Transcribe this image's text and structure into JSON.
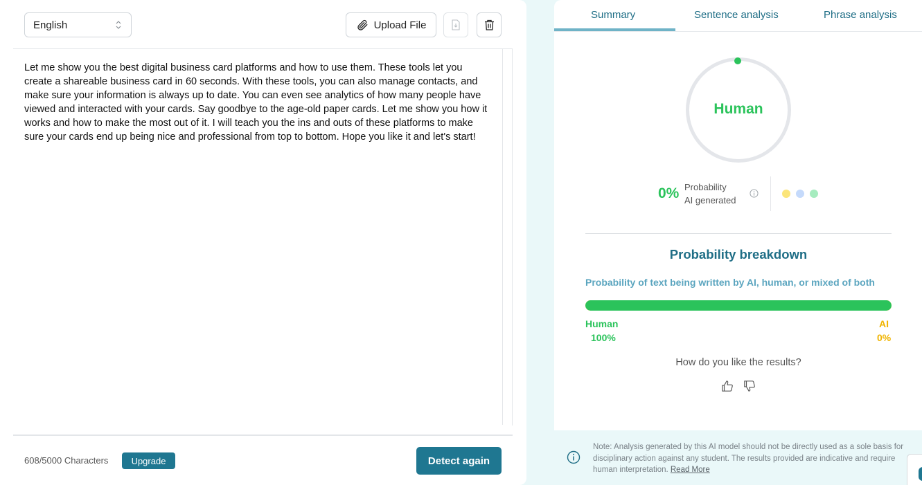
{
  "editor": {
    "language": "English",
    "upload_label": "Upload File",
    "text": "Let me show you the best digital business card platforms and how to use them. These tools let you create a shareable business card in 60 seconds. With these tools, you can also manage contacts, and make sure your information is always up to date. You can even see analytics of how many people have viewed and interacted with your cards. Say goodbye to the age-old paper cards. Let me show you how it works and how to make the most out of it. I will teach you the ins and outs of these platforms to make sure your cards end up being nice and professional from top to bottom. Hope you like it and let's start!",
    "char_count": "608/5000 Characters",
    "upgrade_label": "Upgrade",
    "detect_label": "Detect again"
  },
  "tabs": [
    {
      "label": "Summary",
      "active": true
    },
    {
      "label": "Sentence analysis",
      "active": false
    },
    {
      "label": "Phrase analysis",
      "active": false
    }
  ],
  "summary": {
    "verdict": "Human",
    "ai_percent": "0%",
    "prob_line1": "Probability",
    "prob_line2": "AI generated",
    "breakdown_title": "Probability breakdown",
    "breakdown_subtitle": "Probability of text being written by AI, human, or mixed of both",
    "human_label": "Human",
    "human_value": "100%",
    "human_fraction": 1.0,
    "ai_label": "AI",
    "ai_value": "0%",
    "feedback_question": "How do you like the results?"
  },
  "note": {
    "text": "Note: Analysis generated by this AI model should not be directly used as a sole basis for disciplinary action against any student. The results provided are indicative and require human interpretation. ",
    "link": "Read More"
  },
  "colors": {
    "human": "#2bc35b",
    "ai": "#f2c216",
    "accent": "#1f7791"
  },
  "icons": {
    "upload": "paperclip-icon",
    "download": "file-download-icon",
    "delete": "trash-icon",
    "info": "info-icon",
    "like": "thumbs-up-icon",
    "dislike": "thumbs-down-icon"
  }
}
